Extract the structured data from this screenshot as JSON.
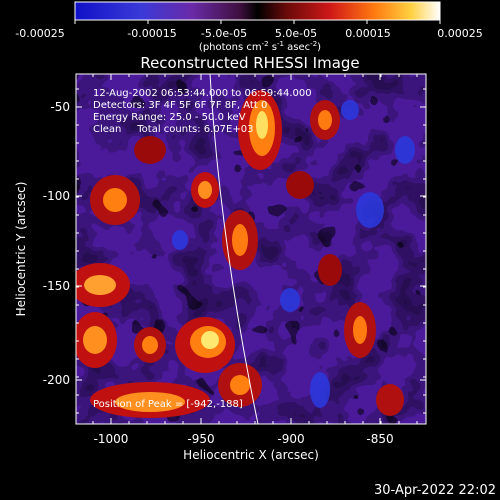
{
  "colorbar": {
    "ticks": [
      "-0.00025",
      "-0.00015",
      "-5.0e-05",
      "5.0e-05",
      "0.00015",
      "0.00025"
    ],
    "units": {
      "prefix": "(photons cm",
      "exp1": "-2",
      "mid1": " s",
      "exp2": "-1",
      "mid2": " asec",
      "exp3": "-2",
      "suffix": ")"
    }
  },
  "title": "Reconstructed RHESSI Image",
  "info": {
    "line1": "12-Aug-2002 06:53:44.000 to 06:59:44.000",
    "line2": "Detectors: 3F 4F 5F 6F 7F 8F, Att 0",
    "line3": "Energy Range: 25.0 - 50.0 keV",
    "line4": "Clean     Total counts: 6.07E+03"
  },
  "peak": "Position of Peak = [-942,-188]",
  "axes": {
    "xlabel": "Heliocentric X (arcsec)",
    "ylabel": "Heliocentric Y (arcsec)",
    "xticks": [
      "-1000",
      "-950",
      "-900",
      "-850"
    ],
    "yticks": [
      "-50",
      "-100",
      "-150",
      "-200"
    ]
  },
  "timestamp": "30-Apr-2022 22:02"
}
